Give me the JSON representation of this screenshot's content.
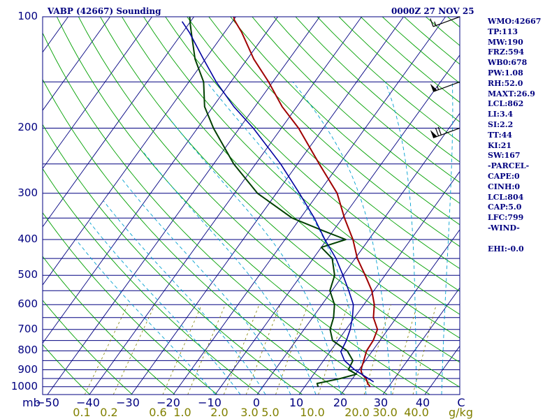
{
  "chart_data": {
    "type": "skew-t log-p sounding",
    "title_left": "VABP (42667) Sounding",
    "title_right": "0000Z 27 NOV 25",
    "pressure_axis": {
      "label": "mb",
      "ticks": [
        100,
        200,
        300,
        400,
        500,
        600,
        700,
        800,
        900,
        1000
      ],
      "range": [
        1050,
        100
      ]
    },
    "temperature_axis": {
      "ticks": [
        -50,
        -40,
        -30,
        -20,
        -10,
        0,
        10,
        20,
        30,
        40
      ],
      "unit_label": "C"
    },
    "mixing_ratio_axis": {
      "ticks": [
        "0.1",
        "0.2",
        "0.6",
        "1.0",
        "2.0",
        "3.0",
        "5.0",
        "10.0",
        "20.0",
        "30.0",
        "40.0"
      ],
      "unit_label": "g/kg"
    },
    "series": [
      {
        "name": "temperature",
        "color": "#a00000",
        "points": [
          [
            1000,
            25.6
          ],
          [
            980,
            24.5
          ],
          [
            950,
            23.2
          ],
          [
            925,
            21.5
          ],
          [
            900,
            20.5
          ],
          [
            850,
            19.6
          ],
          [
            800,
            18.6
          ],
          [
            750,
            18.4
          ],
          [
            700,
            17.5
          ],
          [
            650,
            14.5
          ],
          [
            600,
            12.5
          ],
          [
            550,
            9.5
          ],
          [
            500,
            5.3
          ],
          [
            450,
            0.5
          ],
          [
            400,
            -3.8
          ],
          [
            350,
            -9.5
          ],
          [
            300,
            -15.5
          ],
          [
            250,
            -24.8
          ],
          [
            200,
            -35.9
          ],
          [
            175,
            -43.5
          ],
          [
            150,
            -51.0
          ],
          [
            130,
            -58.5
          ],
          [
            110,
            -66.0
          ],
          [
            102,
            -69.8
          ],
          [
            100,
            -70.5
          ]
        ]
      },
      {
        "name": "dewpoint",
        "color": "#004000",
        "points": [
          [
            1000,
            13.2
          ],
          [
            980,
            12.4
          ],
          [
            950,
            17.1
          ],
          [
            925,
            20.2
          ],
          [
            900,
            17.5
          ],
          [
            850,
            17.0
          ],
          [
            800,
            14.0
          ],
          [
            750,
            8.7
          ],
          [
            700,
            6.2
          ],
          [
            650,
            5.0
          ],
          [
            600,
            3.0
          ],
          [
            550,
            -0.5
          ],
          [
            500,
            -2.0
          ],
          [
            450,
            -5.5
          ],
          [
            420,
            -10.0
          ],
          [
            400,
            -5.5
          ],
          [
            380,
            -12.0
          ],
          [
            350,
            -22.0
          ],
          [
            300,
            -34.5
          ],
          [
            250,
            -45.2
          ],
          [
            200,
            -56.2
          ],
          [
            175,
            -62.0
          ],
          [
            150,
            -66.5
          ],
          [
            130,
            -72.5
          ],
          [
            110,
            -78.0
          ],
          [
            105,
            -79.5
          ],
          [
            100,
            -81.0
          ]
        ]
      },
      {
        "name": "parcel",
        "color": "#0000a0",
        "points": [
          [
            970,
            25.6
          ],
          [
            900,
            19.0
          ],
          [
            850,
            15.0
          ],
          [
            804,
            12.6
          ],
          [
            750,
            12.0
          ],
          [
            700,
            11.0
          ],
          [
            650,
            9.5
          ],
          [
            600,
            7.5
          ],
          [
            550,
            4.0
          ],
          [
            500,
            0.0
          ],
          [
            450,
            -4.6
          ],
          [
            400,
            -10.5
          ],
          [
            350,
            -16.7
          ],
          [
            300,
            -24.5
          ],
          [
            250,
            -34.0
          ],
          [
            200,
            -46.7
          ],
          [
            175,
            -55.0
          ],
          [
            150,
            -63.5
          ],
          [
            130,
            -70.5
          ],
          [
            110,
            -78.5
          ],
          [
            103,
            -82.0
          ]
        ]
      }
    ],
    "wind_barbs": [
      {
        "pressure": 100,
        "speed_kt": 15
      },
      {
        "pressure": 150,
        "speed_kt": 55
      },
      {
        "pressure": 200,
        "speed_kt": 70
      }
    ]
  },
  "indices": [
    "WMO:42667",
    "TP:113",
    "MW:190",
    "FRZ:594",
    "WB0:678",
    "PW:1.08",
    "RH:52.0",
    "MAXT:26.9",
    "LCL:862",
    "LI:3.4",
    "SI:2.2",
    "TT:44",
    "KI:21",
    "SW:167",
    "-PARCEL-",
    "CAPE:0",
    "CINH:0",
    "LCL:804",
    "CAP:5.0",
    "LFC:799",
    "-WIND-",
    "",
    "EHI:-0.0"
  ],
  "colors": {
    "isobar": "#000080",
    "isotherm": "#000080",
    "dry_adiabat": "#00a000",
    "moist_adiabat": "#00a0d0",
    "mixing_ratio": "#808000",
    "text": "#000080"
  }
}
